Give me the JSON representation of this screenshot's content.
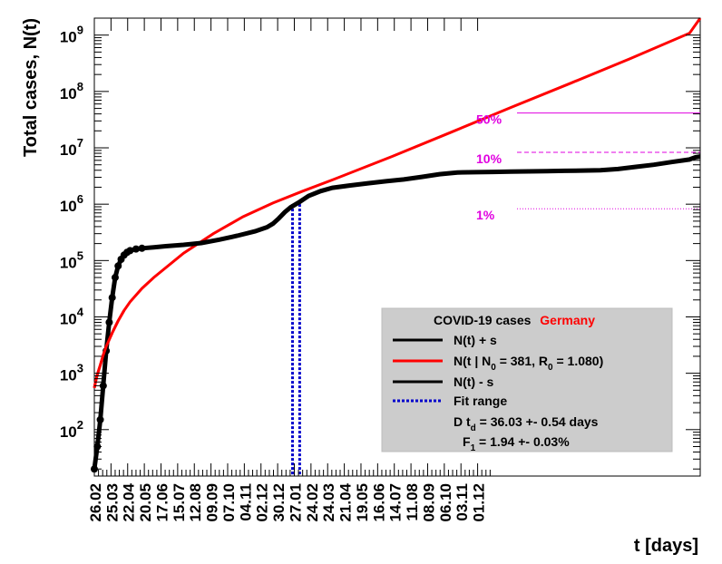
{
  "chart_data": {
    "type": "line",
    "ylabel": "Total cases, N(t)",
    "xlabel": "t [days]",
    "y_scale": "log",
    "ylim": [
      15,
      2000000000
    ],
    "xlim": [
      0,
      1018
    ],
    "x_ticks": [
      "26.02",
      "25.03",
      "22.04",
      "20.05",
      "17.06",
      "15.07",
      "12.08",
      "09.09",
      "07.10",
      "04.11",
      "02.12",
      "30.12",
      "27.01",
      "24.02",
      "24.03",
      "21.04",
      "19.05",
      "16.06",
      "14.07",
      "11.08",
      "08.09",
      "06.10",
      "03.11",
      "01.12"
    ],
    "x_tick_step_days": 28,
    "y_ticks": [
      {
        "value": 100,
        "base": "10",
        "exp": "2"
      },
      {
        "value": 1000,
        "base": "10",
        "exp": "3"
      },
      {
        "value": 10000,
        "base": "10",
        "exp": "4"
      },
      {
        "value": 100000,
        "base": "10",
        "exp": "5"
      },
      {
        "value": 1000000,
        "base": "10",
        "exp": "6"
      },
      {
        "value": 10000000,
        "base": "10",
        "exp": "7"
      },
      {
        "value": 100000000,
        "base": "10",
        "exp": "8"
      },
      {
        "value": 1000000000,
        "base": "10",
        "exp": "9"
      }
    ],
    "fit_range": [
      333,
      345
    ],
    "reference_levels": [
      {
        "label": "50%",
        "value": 41500000,
        "color": "#e000e0",
        "style": "solid"
      },
      {
        "label": "10%",
        "value": 8300000,
        "color": "#e000e0",
        "style": "dashed"
      },
      {
        "label": "1%",
        "value": 830000,
        "color": "#e000e0",
        "style": "dotted"
      }
    ],
    "series": [
      {
        "name": "N(t) + s",
        "color": "#000000",
        "x": [
          0,
          5,
          10,
          15,
          20,
          25,
          30,
          35,
          40,
          45,
          50,
          55,
          60,
          70,
          80,
          100,
          120,
          150,
          180,
          210,
          240,
          270,
          290,
          300,
          310,
          320,
          330,
          345,
          360,
          380,
          400,
          430,
          460,
          490,
          520,
          550,
          580,
          610,
          640,
          670,
          700,
          730,
          760,
          790,
          820,
          850,
          880,
          910,
          940,
          970,
          1000,
          1010,
          1018
        ],
        "y": [
          20,
          50,
          150,
          600,
          2500,
          8000,
          22000,
          50000,
          80000,
          105000,
          125000,
          140000,
          150000,
          160000,
          165000,
          172000,
          180000,
          190000,
          205000,
          235000,
          275000,
          330000,
          390000,
          450000,
          560000,
          720000,
          880000,
          1100000,
          1400000,
          1700000,
          1950000,
          2150000,
          2350000,
          2550000,
          2750000,
          3050000,
          3400000,
          3650000,
          3700000,
          3740000,
          3780000,
          3820000,
          3860000,
          3900000,
          3950000,
          4000000,
          4200000,
          4600000,
          5000000,
          5600000,
          6200000,
          6800000,
          7000000
        ]
      },
      {
        "name": "N(t | N_0 = 381, R_0 = 1.080)",
        "name_parts": {
          "pre": "N(t | N",
          "sub": "0",
          "mid": " =  381, R",
          "sub2": "0",
          "post": " =  1.080)"
        },
        "color": "#ff0000",
        "x": [
          0,
          2,
          5,
          10,
          15,
          20,
          30,
          40,
          50,
          60,
          80,
          100,
          150,
          200,
          250,
          300,
          350,
          400,
          500,
          600,
          700,
          800,
          900,
          1000,
          1018
        ],
        "y": [
          550,
          700,
          950,
          1400,
          2100,
          3000,
          5200,
          8500,
          13000,
          18500,
          32000,
          50000,
          135000,
          300000,
          600000,
          1050000,
          1700000,
          2700000,
          7000000,
          19000000,
          52000000,
          140000000,
          380000000,
          1080000000,
          2000000000
        ]
      },
      {
        "name": "N(t) - s",
        "color": "#000000",
        "x": [
          0,
          5,
          10,
          15,
          20,
          25,
          30,
          35,
          40,
          45,
          50,
          55,
          60,
          70,
          80,
          100,
          120,
          150,
          180,
          210,
          240,
          270,
          290,
          300,
          310,
          320,
          330,
          345,
          360,
          380,
          400,
          430,
          460,
          490,
          520,
          550,
          580,
          610,
          640,
          670,
          700,
          730,
          760,
          790,
          820,
          850,
          880,
          910,
          940,
          970,
          1000,
          1010,
          1018
        ],
        "y": [
          20,
          50,
          150,
          600,
          2500,
          8000,
          22000,
          50000,
          80000,
          105000,
          125000,
          140000,
          150000,
          160000,
          165000,
          172000,
          180000,
          190000,
          205000,
          235000,
          275000,
          330000,
          390000,
          450000,
          560000,
          720000,
          880000,
          1100000,
          1400000,
          1700000,
          1950000,
          2150000,
          2350000,
          2550000,
          2750000,
          3050000,
          3400000,
          3650000,
          3700000,
          3740000,
          3780000,
          3820000,
          3860000,
          3900000,
          3950000,
          4000000,
          4200000,
          4600000,
          5000000,
          5600000,
          6200000,
          6800000,
          7000000
        ]
      }
    ],
    "legend": {
      "title": "COVID-19 cases",
      "country": "Germany",
      "entries": [
        {
          "label": "N(t) + s",
          "color": "#000000",
          "style": "solid"
        },
        {
          "label_pre": "N(t | N",
          "label_sub1": "0",
          "label_mid": " =  381, R",
          "label_sub2": "0",
          "label_post": " =  1.080)",
          "color": "#ff0000",
          "style": "solid"
        },
        {
          "label": "N(t) - s",
          "color": "#000000",
          "style": "solid"
        },
        {
          "label": "Fit range",
          "color": "#0000cc",
          "style": "dotted"
        }
      ],
      "td_pre": "D t",
      "td_sub": "d",
      "td_post": " = 36.03 +- 0.54 days",
      "f_pre": "F",
      "f_sub": "1",
      "f_post": " =  1.94 +- 0.03%"
    }
  }
}
